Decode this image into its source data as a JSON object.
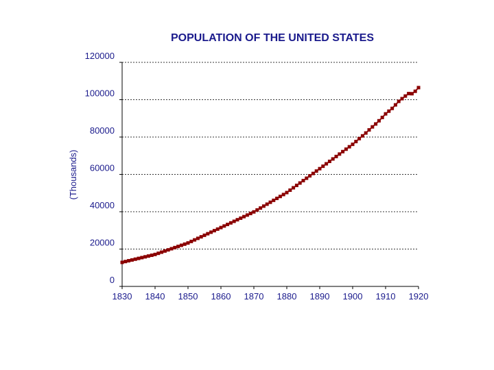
{
  "chart_data": {
    "type": "line",
    "title": "POPULATION OF THE UNITED STATES",
    "xlabel": "",
    "ylabel": "(Thousands)",
    "xlim": [
      1830,
      1920
    ],
    "ylim": [
      0,
      120000
    ],
    "x_ticks": [
      1830,
      1840,
      1850,
      1860,
      1870,
      1880,
      1890,
      1900,
      1910,
      1920
    ],
    "y_ticks": [
      0,
      20000,
      40000,
      60000,
      80000,
      100000,
      120000
    ],
    "grid": "horizontal dashed",
    "marker": "square",
    "series_color": "#8b0000",
    "text_color": "#1a1a8c",
    "series": [
      {
        "x": [
          1830,
          1831,
          1832,
          1833,
          1834,
          1835,
          1836,
          1837,
          1838,
          1839,
          1840,
          1841,
          1842,
          1843,
          1844,
          1845,
          1846,
          1847,
          1848,
          1849,
          1850,
          1851,
          1852,
          1853,
          1854,
          1855,
          1856,
          1857,
          1858,
          1859,
          1860,
          1861,
          1862,
          1863,
          1864,
          1865,
          1866,
          1867,
          1868,
          1869,
          1870,
          1871,
          1872,
          1873,
          1874,
          1875,
          1876,
          1877,
          1878,
          1879,
          1880,
          1881,
          1882,
          1883,
          1884,
          1885,
          1886,
          1887,
          1888,
          1889,
          1890,
          1891,
          1892,
          1893,
          1894,
          1895,
          1896,
          1897,
          1898,
          1899,
          1900,
          1901,
          1902,
          1903,
          1904,
          1905,
          1906,
          1907,
          1908,
          1909,
          1910,
          1911,
          1912,
          1913,
          1914,
          1915,
          1916,
          1917,
          1918,
          1919,
          1920
        ],
        "values": [
          12866,
          13321,
          13742,
          14162,
          14582,
          15003,
          15423,
          15843,
          16264,
          16684,
          17120,
          17733,
          18345,
          18957,
          19569,
          20182,
          20794,
          21406,
          22018,
          22631,
          23261,
          24086,
          24911,
          25736,
          26561,
          27386,
          28212,
          29037,
          29862,
          30687,
          31513,
          32351,
          33188,
          34026,
          34863,
          35701,
          36538,
          37376,
          38213,
          39051,
          39905,
          40938,
          41972,
          43006,
          44040,
          45073,
          46107,
          47141,
          48174,
          49208,
          50262,
          51542,
          52821,
          54100,
          55379,
          56658,
          57938,
          59217,
          60496,
          61775,
          63056,
          64361,
          65666,
          66970,
          68275,
          69580,
          70885,
          72189,
          73494,
          74799,
          76094,
          77585,
          79160,
          80632,
          82165,
          83820,
          85437,
          87000,
          88709,
          90492,
          92407,
          93863,
          95335,
          97225,
          99111,
          100546,
          101961,
          103268,
          103208,
          104514,
          106461
        ]
      }
    ]
  }
}
